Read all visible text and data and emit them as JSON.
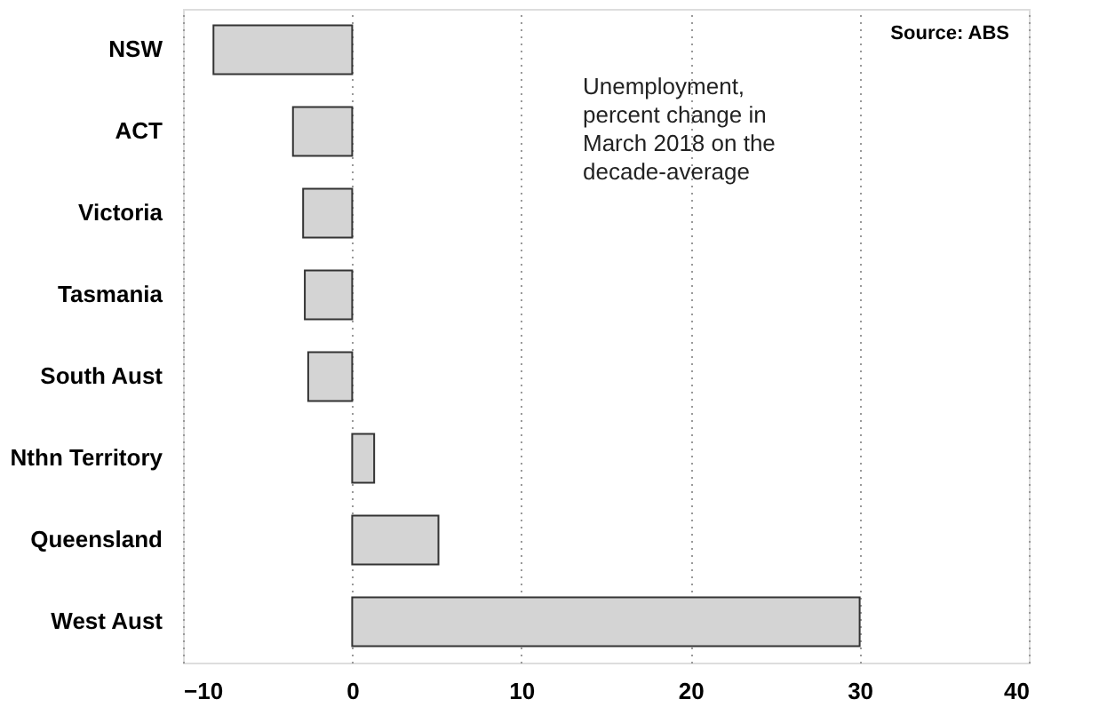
{
  "chart_data": {
    "type": "bar",
    "orientation": "horizontal",
    "categories": [
      "NSW",
      "ACT",
      "Victoria",
      "Tasmania",
      "South Aust",
      "Nthn Territory",
      "Queensland",
      "West Aust"
    ],
    "values": [
      -8.2,
      -3.5,
      -2.9,
      -2.8,
      -2.6,
      1.3,
      5.1,
      30.0
    ],
    "color": "#d4d4d4",
    "xlim": [
      -10,
      40
    ],
    "xticks": [
      -10,
      0,
      10,
      20,
      30,
      40
    ],
    "grid": "x",
    "annotations": [
      "Source: ABS",
      "Unemployment,\npercent change in\nMarch 2018 on the\ndecade-average"
    ]
  }
}
